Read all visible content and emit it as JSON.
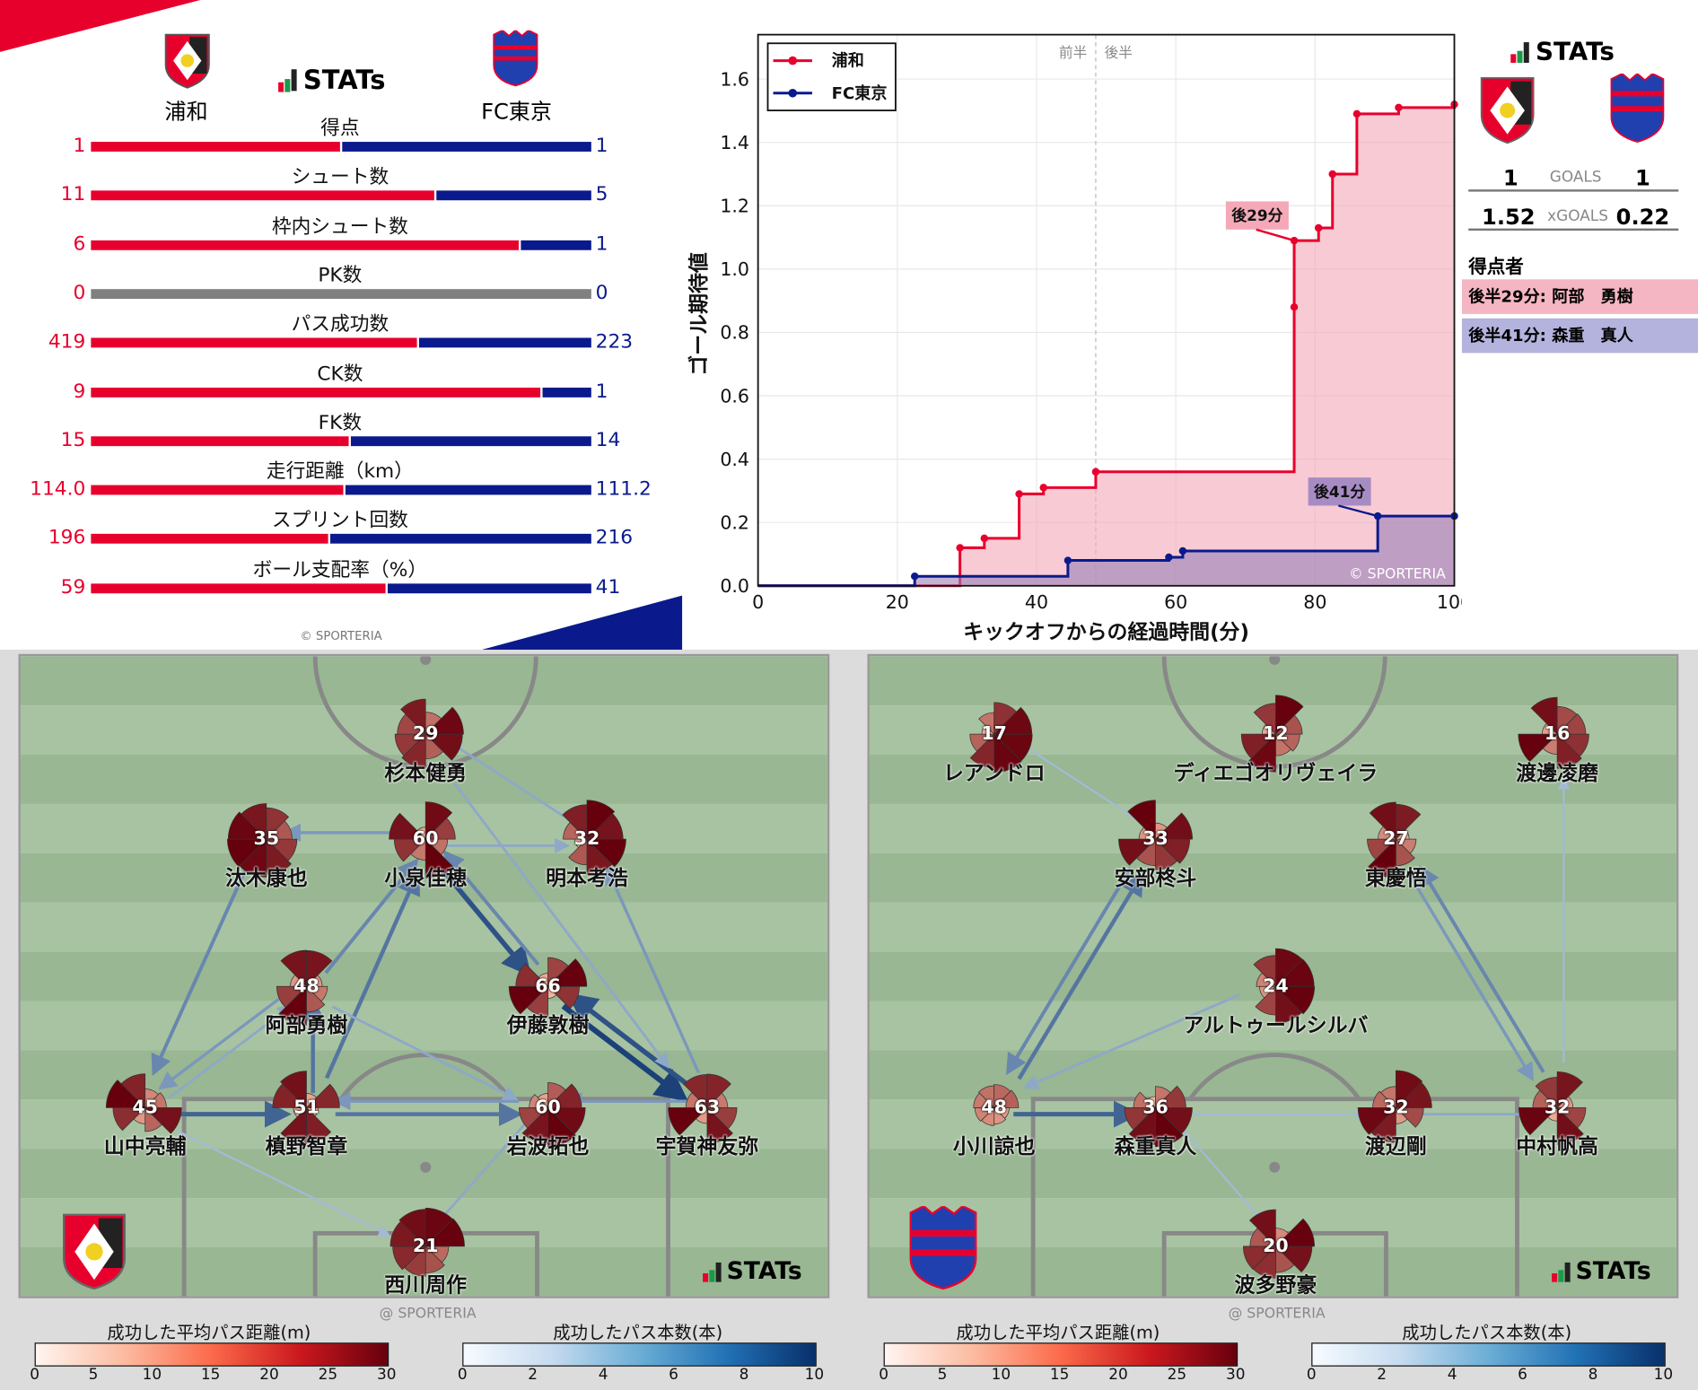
{
  "stats_panel": {
    "brand": "STATs",
    "home_team": "浦和",
    "away_team": "FC東京",
    "rows": [
      {
        "label": "得点",
        "home": "1",
        "away": "1"
      },
      {
        "label": "シュート数",
        "home": "11",
        "away": "5"
      },
      {
        "label": "枠内シュート数",
        "home": "6",
        "away": "1"
      },
      {
        "label": "PK数",
        "home": "0",
        "away": "0"
      },
      {
        "label": "パス成功数",
        "home": "419",
        "away": "223"
      },
      {
        "label": "CK数",
        "home": "9",
        "away": "1"
      },
      {
        "label": "FK数",
        "home": "15",
        "away": "14"
      },
      {
        "label": "走行距離（km）",
        "home": "114.0",
        "away": "111.2"
      },
      {
        "label": "スプリント回数",
        "home": "196",
        "away": "216"
      },
      {
        "label": "ボール支配率（%）",
        "home": "59",
        "away": "41"
      }
    ],
    "copyright": "© SPORTERIA",
    "colors": {
      "home": "#e8002d",
      "away": "#0a1a8c",
      "neutral": "#808080"
    }
  },
  "chart_data": {
    "type": "line",
    "step": true,
    "xlabel": "キックオフからの経過時間(分)",
    "ylabel": "ゴール期待値",
    "xlim": [
      0,
      100
    ],
    "ylim": [
      0,
      1.6
    ],
    "xticks": [
      "0",
      "20",
      "40",
      "60",
      "80",
      "100"
    ],
    "yticks": [
      "0.0",
      "0.2",
      "0.4",
      "0.6",
      "0.8",
      "1.0",
      "1.2",
      "1.4",
      "1.6"
    ],
    "half_labels": [
      "前半",
      "後半"
    ],
    "halftime_minute": 48.5,
    "legend_position": "top-left",
    "series": [
      {
        "name": "浦和",
        "color": "#e8002d",
        "fill": "#f4a9b8",
        "points": [
          [
            29,
            0.12
          ],
          [
            32.5,
            0.15
          ],
          [
            37.5,
            0.29
          ],
          [
            41,
            0.31
          ],
          [
            48.5,
            0.36
          ],
          [
            77,
            0.88
          ],
          [
            77,
            1.09
          ],
          [
            80.5,
            1.13
          ],
          [
            82.5,
            1.3
          ],
          [
            86,
            1.49
          ],
          [
            92,
            1.51
          ],
          [
            100,
            1.52
          ]
        ]
      },
      {
        "name": "FC東京",
        "color": "#0a1a8c",
        "fill": "#9a80b8",
        "points": [
          [
            22.5,
            0.03
          ],
          [
            44.5,
            0.08
          ],
          [
            59,
            0.09
          ],
          [
            61,
            0.11
          ],
          [
            89,
            0.22
          ],
          [
            100,
            0.22
          ]
        ]
      }
    ],
    "annotations": [
      {
        "text": "後29分",
        "x": 77,
        "y": 1.09,
        "series": 0
      },
      {
        "text": "後41分",
        "x": 89,
        "y": 0.22,
        "series": 1
      }
    ],
    "watermark": "© SPORTERIA"
  },
  "summary": {
    "brand": "STATs",
    "goals_label": "GOALS",
    "home_goals": "1",
    "away_goals": "1",
    "xgoals_label": "xGOALS",
    "home_xg": "1.52",
    "away_xg": "0.22",
    "scorers_title": "得点者",
    "scorers": [
      {
        "text": "後半29分: 阿部　勇樹",
        "color": "#f4b6c2"
      },
      {
        "text": "後半41分: 森重　真人",
        "color": "#b3b3dd"
      }
    ]
  },
  "pass_networks": [
    {
      "team": "浦和",
      "brand": "STATs",
      "players": [
        {
          "num": "29",
          "name": "杉本健勇"
        },
        {
          "num": "35",
          "name": "汰木康也"
        },
        {
          "num": "60",
          "name": "小泉佳穂"
        },
        {
          "num": "32",
          "name": "明本考浩"
        },
        {
          "num": "48",
          "name": "阿部勇樹"
        },
        {
          "num": "66",
          "name": "伊藤敦樹"
        },
        {
          "num": "45",
          "name": "山中亮輔"
        },
        {
          "num": "51",
          "name": "槙野智章"
        },
        {
          "num": "60",
          "name": "岩波拓也"
        },
        {
          "num": "63",
          "name": "宇賀神友弥"
        },
        {
          "num": "21",
          "name": "西川周作"
        }
      ]
    },
    {
      "team": "FC東京",
      "brand": "STATs",
      "players": [
        {
          "num": "17",
          "name": "レアンドロ"
        },
        {
          "num": "12",
          "name": "ディエゴオリヴェイラ"
        },
        {
          "num": "16",
          "name": "渡邊凌磨"
        },
        {
          "num": "33",
          "name": "安部柊斗"
        },
        {
          "num": "27",
          "name": "東慶悟"
        },
        {
          "num": "24",
          "name": "アルトゥールシルバ"
        },
        {
          "num": "48",
          "name": "小川諒也"
        },
        {
          "num": "36",
          "name": "森重真人"
        },
        {
          "num": "32",
          "name": "渡辺剛"
        },
        {
          "num": "32",
          "name": "中村帆高"
        },
        {
          "num": "20",
          "name": "波多野豪"
        }
      ]
    }
  ],
  "legends": {
    "watermark": "@ SPORTERIA",
    "distance_title": "成功した平均パス距離(m)",
    "distance_ticks": [
      "0",
      "5",
      "10",
      "15",
      "20",
      "25",
      "30"
    ],
    "count_title": "成功したパス本数(本)",
    "count_ticks": [
      "0",
      "2",
      "4",
      "6",
      "8",
      "10"
    ]
  }
}
